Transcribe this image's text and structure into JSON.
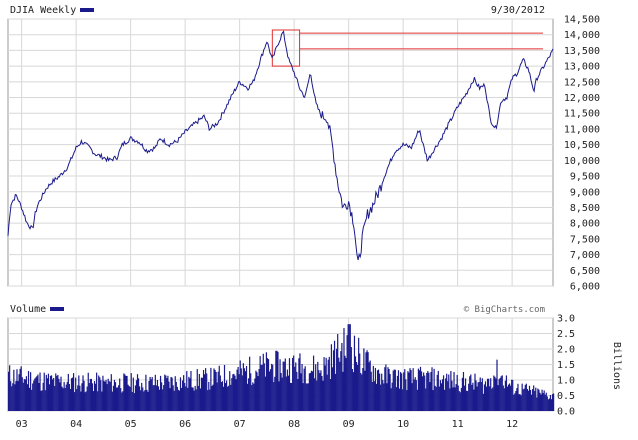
{
  "chart_data": [
    {
      "type": "line",
      "title": "DJIA Weekly",
      "date_label": "9/30/2012",
      "series": [
        {
          "name": "DJIA Weekly",
          "color": "#1a1a8c",
          "x": [
            2002.75,
            2002.8,
            2002.9,
            2003.0,
            2003.1,
            2003.2,
            2003.25,
            2003.3,
            2003.45,
            2003.55,
            2003.7,
            2003.85,
            2004.0,
            2004.1,
            2004.25,
            2004.35,
            2004.5,
            2004.6,
            2004.75,
            2004.85,
            2005.0,
            2005.15,
            2005.3,
            2005.45,
            2005.55,
            2005.7,
            2005.85,
            2006.0,
            2006.2,
            2006.35,
            2006.45,
            2006.6,
            2006.75,
            2006.9,
            2007.0,
            2007.15,
            2007.25,
            2007.4,
            2007.5,
            2007.6,
            2007.7,
            2007.8,
            2007.9,
            2008.0,
            2008.1,
            2008.2,
            2008.3,
            2008.4,
            2008.5,
            2008.6,
            2008.7,
            2008.8,
            2008.9,
            2009.0,
            2009.1,
            2009.17,
            2009.25,
            2009.35,
            2009.45,
            2009.55,
            2009.7,
            2009.85,
            2010.0,
            2010.15,
            2010.3,
            2010.35,
            2010.45,
            2010.55,
            2010.7,
            2010.85,
            2011.0,
            2011.15,
            2011.3,
            2011.4,
            2011.5,
            2011.6,
            2011.7,
            2011.8,
            2011.9,
            2012.0,
            2012.1,
            2012.2,
            2012.3,
            2012.4,
            2012.45,
            2012.55,
            2012.65,
            2012.75
          ],
          "y": [
            7600,
            8600,
            8900,
            8500,
            8000,
            7800,
            8300,
            8600,
            9100,
            9300,
            9500,
            9800,
            10400,
            10600,
            10400,
            10200,
            10100,
            10000,
            10100,
            10500,
            10700,
            10600,
            10300,
            10400,
            10700,
            10500,
            10600,
            10900,
            11200,
            11400,
            11000,
            11200,
            11700,
            12200,
            12500,
            12300,
            12500,
            13300,
            13800,
            13200,
            13700,
            14100,
            13200,
            12800,
            12300,
            12000,
            12800,
            11800,
            11400,
            11400,
            10500,
            9300,
            8500,
            8700,
            8000,
            6600,
            7500,
            8300,
            8600,
            9000,
            9700,
            10300,
            10500,
            10400,
            11000,
            10600,
            10000,
            10300,
            10700,
            11200,
            11700,
            12100,
            12600,
            12300,
            12400,
            11300,
            11000,
            11900,
            12000,
            12600,
            12800,
            13200,
            12900,
            12200,
            12600,
            12900,
            13200,
            13500
          ]
        }
      ],
      "xlim": [
        2002.75,
        2012.75
      ],
      "ylim": [
        6000,
        14500
      ],
      "yticks": [
        "14,500",
        "14,000",
        "13,500",
        "13,000",
        "12,500",
        "12,000",
        "11,500",
        "11,000",
        "10,500",
        "10,000",
        "9,500",
        "9,000",
        "8,500",
        "8,000",
        "7,500",
        "7,000",
        "6,500",
        "6,000"
      ],
      "grid": true,
      "annotations": [
        {
          "type": "box",
          "x": [
            2007.6,
            2008.1
          ],
          "y": [
            13000,
            14150
          ],
          "color": "#e03030"
        },
        {
          "type": "hline",
          "y": 14050,
          "x_start": 2008.1,
          "color": "#e03030"
        },
        {
          "type": "hline",
          "y": 13550,
          "x_start": 2008.1,
          "color": "#e03030"
        }
      ]
    },
    {
      "type": "bar",
      "title": "Volume",
      "credit": "© BigCharts.com",
      "ylabel": "Billions",
      "color": "#1a1a8c",
      "ylim": [
        0,
        3
      ],
      "yticks": [
        "3.0",
        "2.5",
        "2.0",
        "1.5",
        "1.0",
        "0.5",
        "0.0"
      ],
      "x_labels": [
        "03",
        "04",
        "05",
        "06",
        "07",
        "08",
        "09",
        "10",
        "11",
        "12"
      ],
      "x_label_positions": [
        2003,
        2004,
        2005,
        2006,
        2007,
        2008,
        2009,
        2010,
        2011,
        2012
      ],
      "volume_profile_x": [
        2002.75,
        2003.5,
        2004.5,
        2005.5,
        2006.5,
        2007.0,
        2007.5,
        2008.0,
        2008.5,
        2008.8,
        2009.0,
        2009.3,
        2009.6,
        2010.0,
        2010.5,
        2011.0,
        2011.5,
        2011.7,
        2012.0,
        2012.5,
        2012.75
      ],
      "volume_profile_y": [
        1.2,
        1.0,
        0.95,
        0.95,
        1.1,
        1.3,
        1.5,
        1.5,
        1.4,
        2.0,
        2.2,
        1.6,
        1.2,
        1.1,
        1.1,
        1.0,
        0.9,
        1.3,
        0.8,
        0.6,
        0.5
      ]
    }
  ]
}
